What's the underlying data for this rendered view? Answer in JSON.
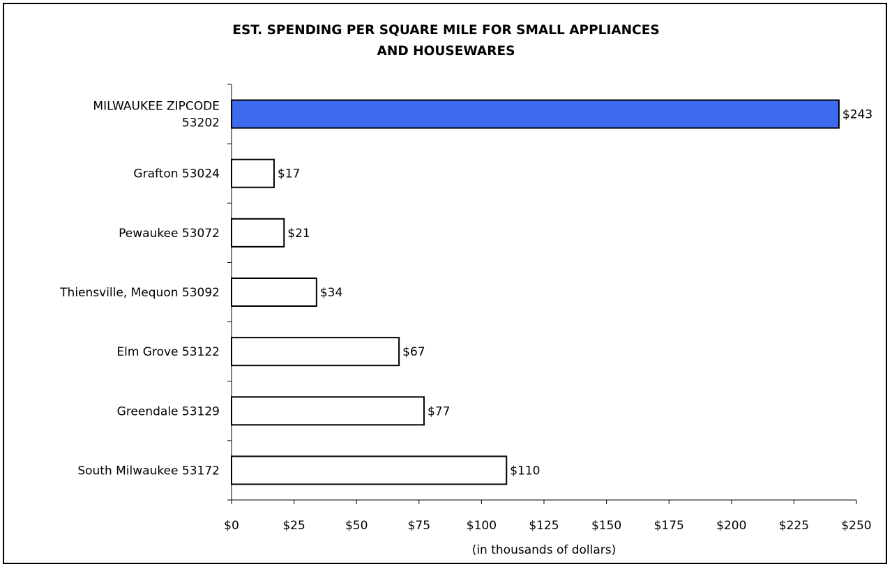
{
  "chart_data": {
    "type": "bar",
    "orientation": "horizontal",
    "title_lines": [
      "EST. SPENDING PER SQUARE MILE FOR SMALL APPLIANCES",
      "AND HOUSEWARES"
    ],
    "xlabel": "(in thousands of dollars)",
    "ylabel": "",
    "categories": [
      [
        "MILWAUKEE ZIPCODE",
        "53202"
      ],
      [
        "Grafton 53024"
      ],
      [
        "Pewaukee 53072"
      ],
      [
        "Thiensville, Mequon 53092"
      ],
      [
        "Elm Grove 53122"
      ],
      [
        "Greendale 53129"
      ],
      [
        "South Milwaukee 53172"
      ]
    ],
    "values": [
      243,
      17,
      21,
      34,
      67,
      77,
      110
    ],
    "value_labels": [
      "$243",
      "$17",
      "$21",
      "$34",
      "$67",
      "$77",
      "$110"
    ],
    "highlight_index": 0,
    "colors": {
      "highlight": "#3D6BF0",
      "default": "#FFFFFF",
      "stroke": "#000000"
    },
    "xlim": [
      0,
      250
    ],
    "xticks": [
      0,
      25,
      50,
      75,
      100,
      125,
      150,
      175,
      200,
      225,
      250
    ],
    "xtick_labels": [
      "$0",
      "$25",
      "$50",
      "$75",
      "$100",
      "$125",
      "$150",
      "$175",
      "$200",
      "$225",
      "$250"
    ],
    "grid": false,
    "legend": "none"
  }
}
